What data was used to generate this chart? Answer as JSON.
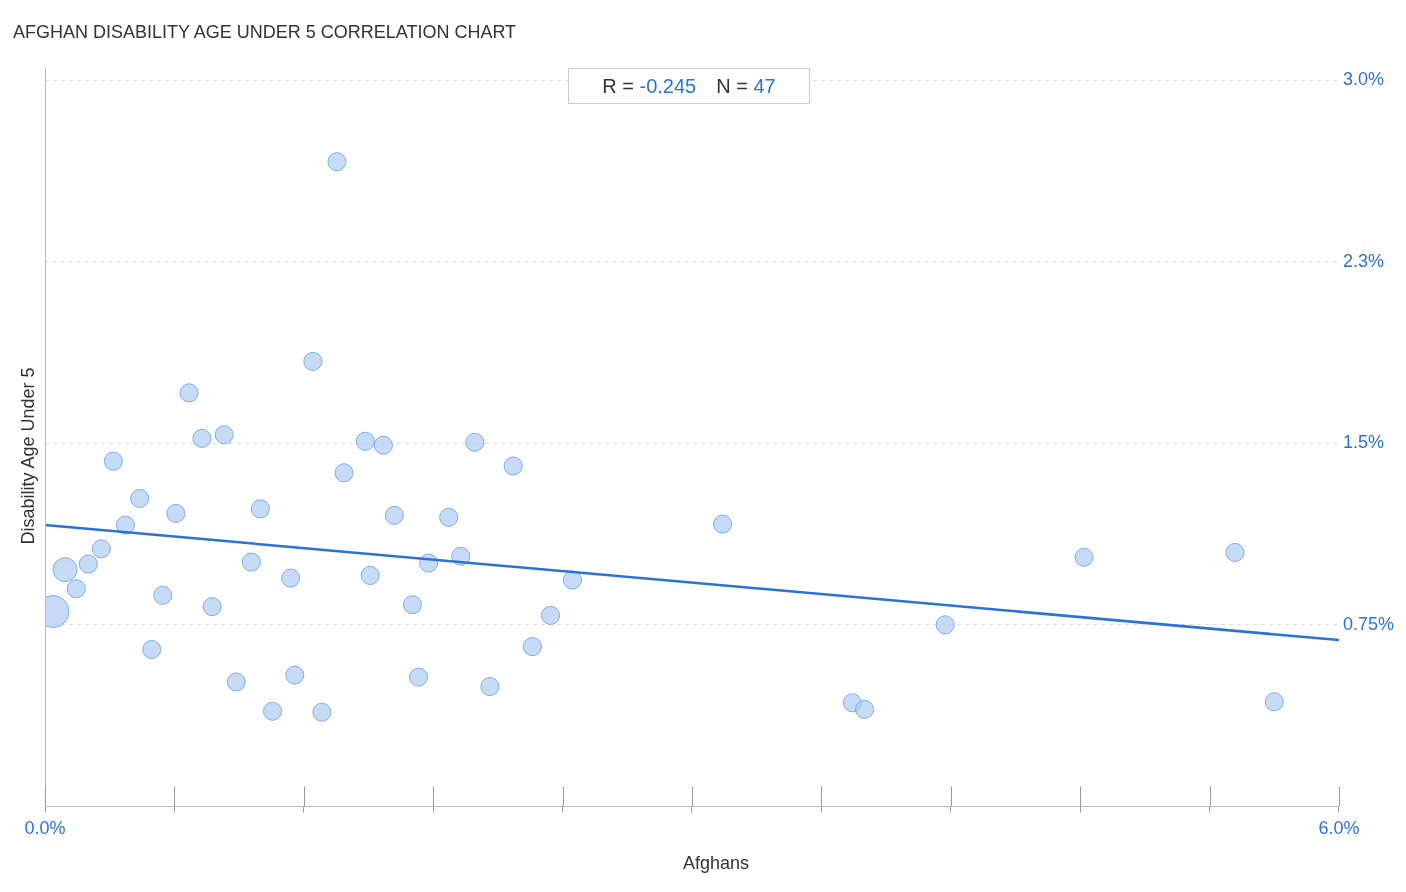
{
  "chart_data": {
    "type": "bubble",
    "title": "AFGHAN DISABILITY AGE UNDER 5 CORRELATION CHART",
    "xlabel": "Afghans",
    "ylabel": "Disability Age Under 5",
    "annotations": [
      "R = -0.245",
      "N = 47"
    ],
    "series": [
      {
        "type": "bubble",
        "marker": "circle",
        "color": "#a9c9f0",
        "x": [
          0.037,
          0.093,
          0.145,
          0.201,
          0.261,
          0.317,
          0.373,
          0.439,
          0.495,
          0.546,
          0.607,
          0.668,
          0.728,
          0.775,
          0.831,
          0.887,
          0.957,
          0.999,
          1.055,
          1.139,
          1.158,
          1.242,
          1.284,
          1.354,
          1.387,
          1.485,
          1.508,
          1.569,
          1.62,
          1.704,
          1.732,
          1.779,
          1.872,
          1.928,
          1.993,
          2.063,
          2.171,
          2.26,
          2.344,
          2.446,
          3.142,
          3.744,
          3.8,
          4.174,
          4.818,
          5.518,
          5.7
        ],
        "values": [
          0.805,
          0.978,
          0.899,
          1.001,
          1.064,
          1.426,
          1.162,
          1.272,
          0.648,
          0.872,
          1.21,
          1.708,
          1.52,
          0.825,
          1.535,
          0.514,
          1.009,
          1.229,
          0.393,
          0.943,
          0.542,
          1.838,
          0.389,
          2.663,
          1.378,
          1.508,
          0.954,
          1.492,
          1.202,
          0.833,
          0.534,
          1.005,
          1.194,
          1.033,
          1.504,
          0.495,
          1.406,
          0.66,
          0.789,
          0.935,
          1.166,
          0.428,
          0.401,
          0.75,
          1.029,
          1.049,
          0.432
        ],
        "sizes": [
          1,
          0.56,
          0.32,
          0.32,
          0.32,
          0.32,
          0.32,
          0.32,
          0.32,
          0.32,
          0.32,
          0.32,
          0.32,
          0.32,
          0.32,
          0.32,
          0.32,
          0.32,
          0.32,
          0.32,
          0.32,
          0.32,
          0.32,
          0.32,
          0.32,
          0.32,
          0.32,
          0.32,
          0.32,
          0.32,
          0.32,
          0.32,
          0.32,
          0.32,
          0.32,
          0.32,
          0.32,
          0.32,
          0.32,
          0.32,
          0.32,
          0.32,
          0.32,
          0.32,
          0.32,
          0.32,
          0.32
        ]
      },
      {
        "type": "line",
        "marker": "none",
        "color": "#2a72d8",
        "x": [
          0,
          6.0
        ],
        "values": [
          1.162,
          0.687
        ]
      }
    ],
    "xlim": [
      0,
      6.0
    ],
    "ylim": [
      0,
      3.05
    ],
    "xticks": [
      {
        "value": 0,
        "label": "0.0%"
      },
      {
        "value": 0.6,
        "label": null
      },
      {
        "value": 1.2,
        "label": null
      },
      {
        "value": 1.8,
        "label": null
      },
      {
        "value": 2.4,
        "label": null
      },
      {
        "value": 3.0,
        "label": null
      },
      {
        "value": 3.6,
        "label": null
      },
      {
        "value": 4.2,
        "label": null
      },
      {
        "value": 4.8,
        "label": null
      },
      {
        "value": 5.4,
        "label": null
      },
      {
        "value": 6.0,
        "label": "6.0%"
      }
    ],
    "yticks": [
      {
        "value": 0.75,
        "label": "0.75%"
      },
      {
        "value": 1.5,
        "label": "1.5%"
      },
      {
        "value": 2.25,
        "label": "2.3%"
      },
      {
        "value": 3.0,
        "label": "3.0%"
      }
    ],
    "grid": "y",
    "legend": false,
    "line_style": "solid"
  }
}
